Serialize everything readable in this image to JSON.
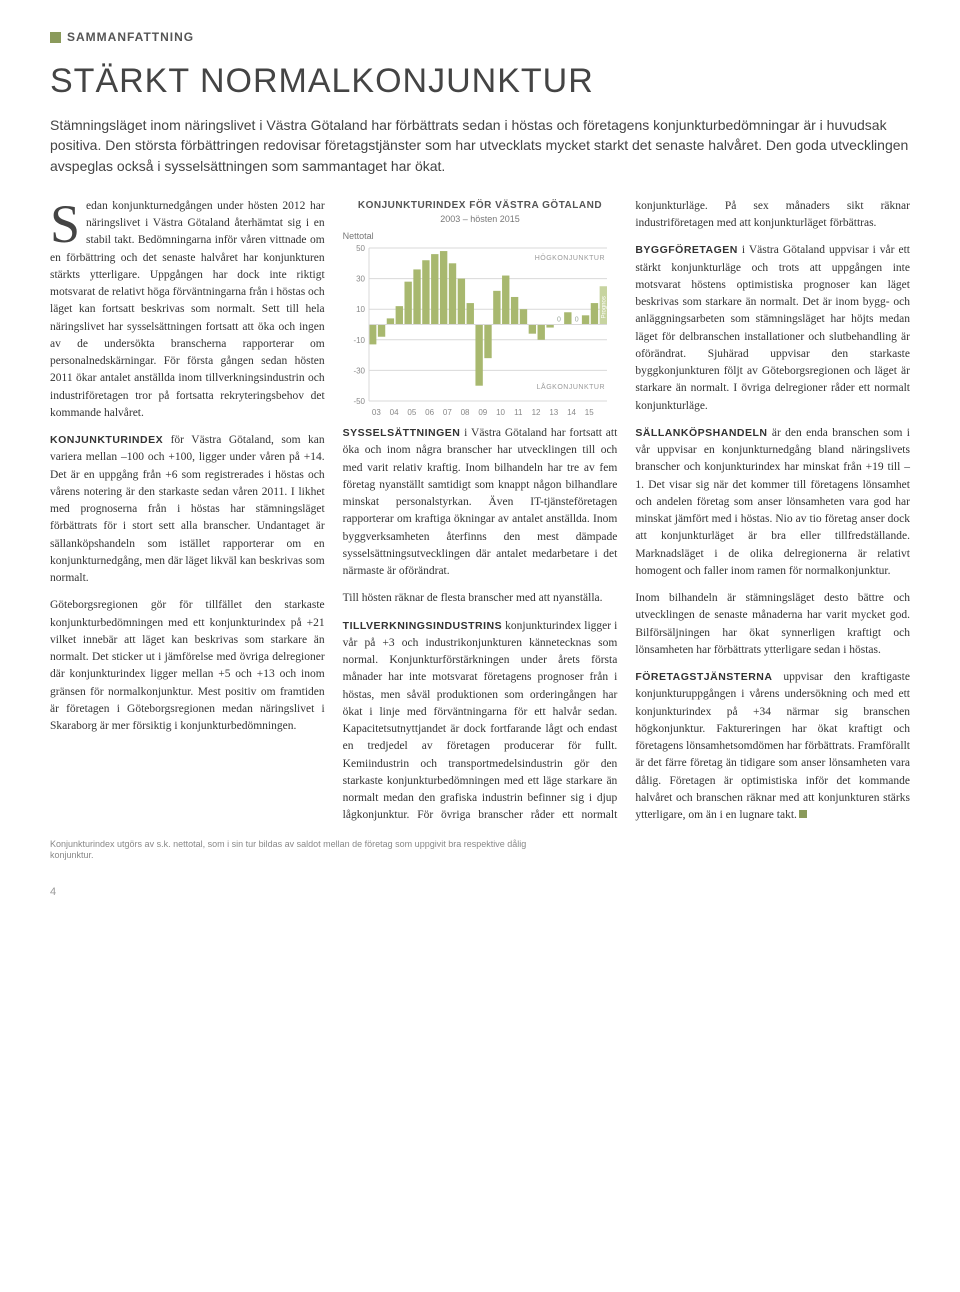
{
  "section_label": "SAMMANFATTNING",
  "title": "STÄRKT NORMALKONJUNKTUR",
  "intro": "Stämningsläget inom näringslivet i Västra Götaland har förbättrats sedan i höstas och företagens konjunkturbedömningar är i huvudsak positiva. Den största förbättringen redovisar företagstjänster som har utvecklats mycket starkt det senaste halvåret. Den goda utvecklingen avspeglas också i sysselsättningen som sammantaget har ökat.",
  "body": {
    "p1": "Sedan konjunkturnedgången under hösten 2012 har näringslivet i Västra Götaland återhämtat sig i en stabil takt. Bedömningarna inför våren vittnade om en förbättring och det senaste halvåret har konjunkturen stärkts ytterligare. Uppgången har dock inte riktigt motsvarat de relativt höga förväntningarna från i höstas och läget kan fortsatt beskrivas som normalt. Sett till hela näringslivet har sysselsättningen fortsatt att öka och ingen av de undersökta branscherna rapporterar om personalnedskärningar. För första gången sedan hösten 2011 ökar antalet anställda inom tillverkningsindustrin och industriföretagen tror på fortsatta rekryteringsbehov det kommande halvåret.",
    "p2_runin": "KONJUNKTURINDEX",
    "p2": " för Västra Götaland, som kan variera mellan –100 och +100, ligger under våren på +14. Det är en uppgång från +6 som registrerades i höstas och vårens notering är den starkaste sedan våren 2011. I likhet med prognoserna från i höstas har stämningsläget förbättrats för i stort sett alla branscher. Undantaget är sällanköpshandeln som istället rapporterar om en konjunkturnedgång, men där läget likväl kan beskrivas som normalt.",
    "p3": "Göteborgsregionen gör för tillfället den starkaste konjunkturbedömningen med ett konjunkturindex på +21 vilket innebär att läget kan beskrivas som starkare än normalt. Det sticker ut i jämförelse med övriga delregioner där konjunkturindex ligger mellan +5 och +13 och inom gränsen för normalkonjunktur. Mest positiv om framtiden är företagen i Göteborgsregionen medan näringslivet i Skaraborg är mer försiktig i konjunkturbedömningen.",
    "p4_runin": "SYSSELSÄTTNINGEN",
    "p4": " i Västra Götaland har fortsatt att öka och inom några branscher har utvecklingen till och med varit relativ kraftig. Inom bilhandeln har tre av fem företag nyanställt samtidigt som knappt någon bilhandlare minskat personalstyrkan. Även IT-tjänsteföretagen rapporterar om kraftiga ökningar av antalet anställda. Inom byggverksamheten återfinns den mest dämpade sysselsättningsutvecklingen där antalet medarbetare i det närmaste är oförändrat.",
    "p4b": "Till hösten räknar de flesta branscher med att nyanställa.",
    "p5_runin": "TILLVERKNINGSINDUSTRINS",
    "p5": " konjunkturindex ligger i vår på +3 och industrikonjunkturen kännetecknas som normal. Konjunkturförstärkningen under årets första månader har inte motsvarat företagens prognoser från i höstas, men såväl produktionen som orderingången har ökat i linje med förväntningarna för ett halvår sedan. Kapacitetsutnyttjandet är dock fortfarande lågt och endast en tredjedel av företagen producerar för fullt. Kemiindustrin och transportmedelsindustrin gör den starkaste konjunkturbedömningen med ett läge starkare än normalt medan den grafiska industrin befinner sig i djup lågkonjunktur. För övriga branscher råder ett normalt konjunkturläge. På sex månaders sikt räknar industriföretagen med att konjunkturläget förbättras.",
    "p6_runin": "BYGGFÖRETAGEN",
    "p6": " i Västra Götaland uppvisar i vår ett stärkt konjunkturläge och trots att uppgången inte motsvarat höstens optimistiska prognoser kan läget beskrivas som starkare än normalt. Det är inom bygg- och anläggningsarbeten som stämningsläget har höjts medan läget för delbranschen installationer och slutbehandling är oförändrat. Sjuhärad uppvisar den starkaste byggkonjunkturen följt av Göteborgsregionen och läget är starkare än normalt. I övriga delregioner råder ett normalt konjunkturläge.",
    "p7_runin": "SÄLLANKÖPSHANDELN",
    "p7": " är den enda branschen som i vår uppvisar en konjunkturnedgång bland näringslivets branscher och konjunkturindex har minskat från +19 till –1. Det visar sig när det kommer till företagens lönsamhet och andelen företag som anser lönsamheten vara god har minskat jämfört med i höstas. Nio av tio företag anser dock att konjunkturläget är bra eller tillfredställande. Marknadsläget i de olika delregionerna är relativt homogent och faller inom ramen för normalkonjunktur.",
    "p7b": "Inom bilhandeln är stämningsläget desto bättre och utvecklingen de senaste månaderna har varit mycket god. Bilförsäljningen har ökat synnerligen kraftigt och lönsamheten har förbättrats ytterligare sedan i höstas.",
    "p8_runin": "FÖRETAGSTJÄNSTERNA",
    "p8": " uppvisar den kraftigaste konjunkturuppgången i vårens undersökning och med ett konjunkturindex på +34 närmar sig branschen högkonjunktur. Faktureringen har ökat kraftigt och företagens lönsamhetsomdömen har förbättrats. Framförallt är det färre företag än tidigare som anser lönsamheten vara dålig. Företagen är optimistiska inför det kommande halvåret och branschen räknar med att konjunkturen stärks ytterligare, om än i en lugnare takt."
  },
  "chart": {
    "title": "KONJUNKTURINDEX FÖR VÄSTRA GÖTALAND",
    "subtitle": "2003 – hösten 2015",
    "ylabel": "Nettotal",
    "high_label": "HÖGKONJUNKTUR",
    "low_label": "LÅGKONJUNKTUR",
    "prognos_label": "Prognos",
    "ylim": [
      -50,
      50
    ],
    "yticks": [
      -50,
      -30,
      -10,
      10,
      30,
      50
    ],
    "xlabels": [
      "03",
      "04",
      "05",
      "06",
      "07",
      "08",
      "09",
      "10",
      "11",
      "12",
      "13",
      "14",
      "15"
    ],
    "bar_color": "#a8b86f",
    "prognos_color": "#c7d4a0",
    "zero_marker_color": "#9aa79a",
    "grid_color": "#d9d9d9",
    "axis_color": "#d9d9d9",
    "tick_text_color": "#888888",
    "background": "#ffffff",
    "bars": [
      -13,
      -8,
      4,
      12,
      28,
      36,
      42,
      46,
      48,
      40,
      30,
      14,
      -40,
      -22,
      22,
      32,
      18,
      10,
      -6,
      -10,
      -2,
      0,
      8,
      0,
      6,
      14,
      25
    ],
    "prognos_index": 26,
    "footnote": "Konjunkturindex utgörs av s.k. nettotal, som i sin tur bildas av saldot mellan de företag som uppgivit bra respektive dålig konjunktur."
  },
  "page_number": "4"
}
